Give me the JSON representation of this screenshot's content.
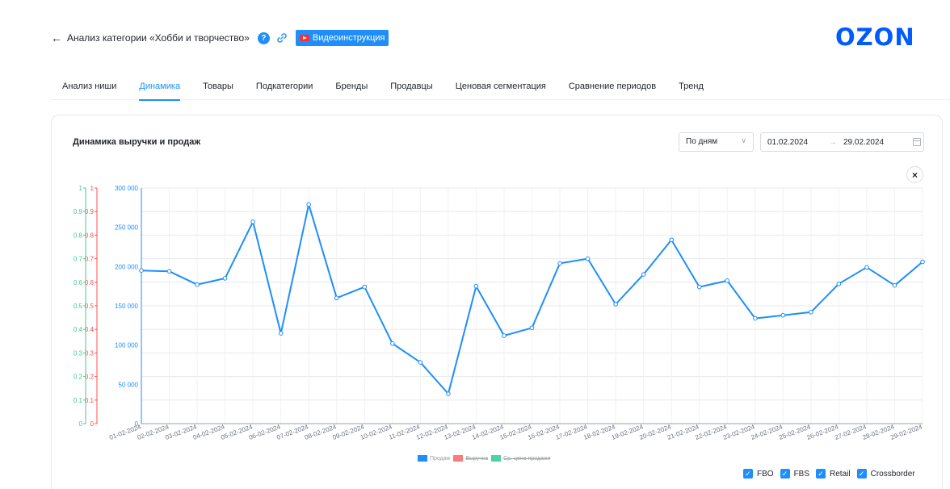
{
  "header": {
    "title": "Анализ категории «Хобби и творчество»",
    "help_glyph": "?",
    "video_button": "Видеоинструкция",
    "logo": "OZON",
    "brand_color": "#005bff",
    "accent_color": "#1f8efa"
  },
  "tabs": [
    {
      "label": "Анализ ниши",
      "active": false
    },
    {
      "label": "Динамика",
      "active": true
    },
    {
      "label": "Товары",
      "active": false
    },
    {
      "label": "Подкатегории",
      "active": false
    },
    {
      "label": "Бренды",
      "active": false
    },
    {
      "label": "Продавцы",
      "active": false
    },
    {
      "label": "Ценовая сегментация",
      "active": false
    },
    {
      "label": "Сравнение периодов",
      "active": false
    },
    {
      "label": "Тренд",
      "active": false
    }
  ],
  "card": {
    "title": "Динамика выручки и продаж",
    "period_select": "По дням",
    "date_from": "01.02.2024",
    "date_arrow": "→",
    "date_to": "29.02.2024",
    "close_glyph": "×"
  },
  "legend": [
    {
      "label": "Продаж",
      "color": "#1f8efa",
      "struck": false
    },
    {
      "label": "Выручка",
      "color": "#ff7a7a",
      "struck": true
    },
    {
      "label": "Ср. цена продажи",
      "color": "#4fd1a5",
      "struck": true
    }
  ],
  "filters": [
    {
      "label": "FBO",
      "checked": true
    },
    {
      "label": "FBS",
      "checked": true
    },
    {
      "label": "Retail",
      "checked": true
    },
    {
      "label": "Crossborder",
      "checked": true
    }
  ],
  "chart_data": {
    "type": "line",
    "x": [
      "01-02-2024",
      "02-02-2024",
      "03-02-2024",
      "04-02-2024",
      "05-02-2024",
      "06-02-2024",
      "07-02-2024",
      "08-02-2024",
      "09-02-2024",
      "10-02-2024",
      "11-02-2024",
      "12-02-2024",
      "13-02-2024",
      "14-02-2024",
      "15-02-2024",
      "16-02-2024",
      "17-02-2024",
      "18-02-2024",
      "19-02-2024",
      "20-02-2024",
      "21-02-2024",
      "22-02-2024",
      "23-02-2024",
      "24-02-2024",
      "25-02-2024",
      "26-02-2024",
      "27-02-2024",
      "28-02-2024",
      "29-02-2024"
    ],
    "series": [
      {
        "name": "Продаж",
        "color": "#1f8efa",
        "values": [
          195000,
          194000,
          177000,
          185000,
          257000,
          115000,
          279000,
          160000,
          174000,
          102000,
          78000,
          38000,
          175000,
          112000,
          122000,
          204000,
          210000,
          152000,
          190000,
          234000,
          174000,
          182000,
          134000,
          138000,
          142000,
          178000,
          199000,
          176000,
          206000
        ]
      }
    ],
    "y_primary": {
      "ticks": [
        "0",
        "50 000",
        "100 000",
        "150 000",
        "200 000",
        "250 000",
        "300 000"
      ],
      "ylim": [
        0,
        300000
      ],
      "color": "#1f8efa"
    },
    "y_red": {
      "ticks": [
        "0",
        "0.1",
        "0.2",
        "0.3",
        "0.4",
        "0.5",
        "0.6",
        "0.7",
        "0.8",
        "0.9",
        "1"
      ],
      "color": "#ff4d4f"
    },
    "y_green": {
      "ticks": [
        "0",
        "0.1",
        "0.2",
        "0.3",
        "0.4",
        "0.5",
        "0.6",
        "0.7",
        "0.8",
        "0.9",
        "1"
      ],
      "color": "#3cc98f"
    },
    "grid": true
  }
}
